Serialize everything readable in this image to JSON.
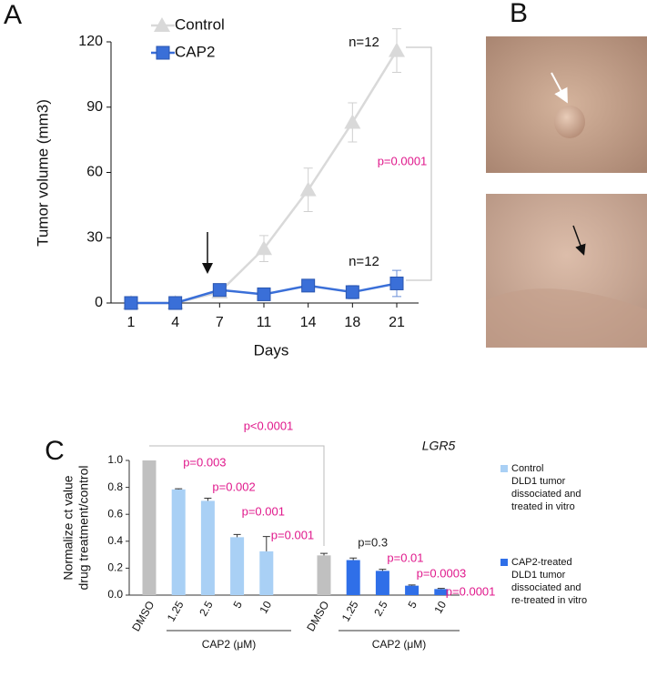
{
  "panels": [
    "A",
    "B",
    "C"
  ],
  "chart_data": [
    {
      "type": "line",
      "x_label": "Days",
      "y_label": "Tumor volume (mm3)",
      "categories": [
        "1",
        "4",
        "7",
        "11",
        "14",
        "18",
        "21"
      ],
      "ylim": [
        0,
        120
      ],
      "yticks": [
        0,
        30,
        60,
        90,
        120
      ],
      "series": [
        {
          "name": "Control",
          "color": "#d9d9d9",
          "marker": "triangle",
          "values": [
            0,
            0,
            5,
            25,
            52,
            83,
            116
          ],
          "errors": [
            0,
            0,
            1,
            6,
            10,
            9,
            10
          ]
        },
        {
          "name": "CAP2",
          "color": "#3a6fd8",
          "marker": "square",
          "values": [
            0,
            0,
            6,
            4,
            8,
            5,
            9
          ],
          "errors": [
            1,
            1,
            2,
            2,
            2,
            3,
            6
          ]
        }
      ],
      "n_labels": [
        "n=12",
        "n=12"
      ],
      "p_value": "p=0.0001"
    },
    {
      "type": "bar",
      "title": "LGR5",
      "y_label": [
        "Normalize ct value",
        "drug treatment/control"
      ],
      "categories": [
        "DMSO",
        "1.25",
        "2.5",
        "5",
        "10",
        "DMSO",
        "1.25",
        "2.5",
        "5",
        "10"
      ],
      "values": [
        1.0,
        0.785,
        0.7,
        0.43,
        0.325,
        0.295,
        0.26,
        0.18,
        0.07,
        0.045
      ],
      "errors": [
        0,
        0.005,
        0.02,
        0.02,
        0.11,
        0.015,
        0.015,
        0.012,
        0.005,
        0.005
      ],
      "colors": [
        "#c0c0c0",
        "#a9d0f5",
        "#a9d0f5",
        "#a9d0f5",
        "#a9d0f5",
        "#c0c0c0",
        "#2f6fe8",
        "#2f6fe8",
        "#2f6fe8",
        "#2f6fe8"
      ],
      "p_values": [
        null,
        "p=0.003",
        "p=0.002",
        "p=0.001",
        "p=0.001",
        null,
        "p=0.3",
        "p=0.01",
        "p=0.0003",
        "p=0.0001"
      ],
      "p_value_colors": [
        null,
        "#e0198c",
        "#e0198c",
        "#e0198c",
        "#e0198c",
        null,
        "#222222",
        "#e0198c",
        "#e0198c",
        "#e0198c"
      ],
      "bracket_p_value": "p<0.0001",
      "group_labels": [
        "CAP2 (μM)",
        "CAP2 (μM)"
      ],
      "ylim": [
        0,
        1.0
      ],
      "yticks": [
        {
          "value": 0,
          "label": "0.0"
        },
        0.2,
        0.4,
        0.6,
        0.8,
        {
          "value": 1.0,
          "label": "1.0"
        }
      ],
      "legend": [
        {
          "color": "#a9d0f5",
          "label": [
            "Control",
            "DLD1 tumor",
            "dissociated and",
            "treated in vitro"
          ]
        },
        {
          "color": "#2f6fe8",
          "label": [
            "CAP2-treated",
            "DLD1 tumor",
            "dissociated and",
            "re-treated in vitro"
          ]
        }
      ]
    }
  ]
}
